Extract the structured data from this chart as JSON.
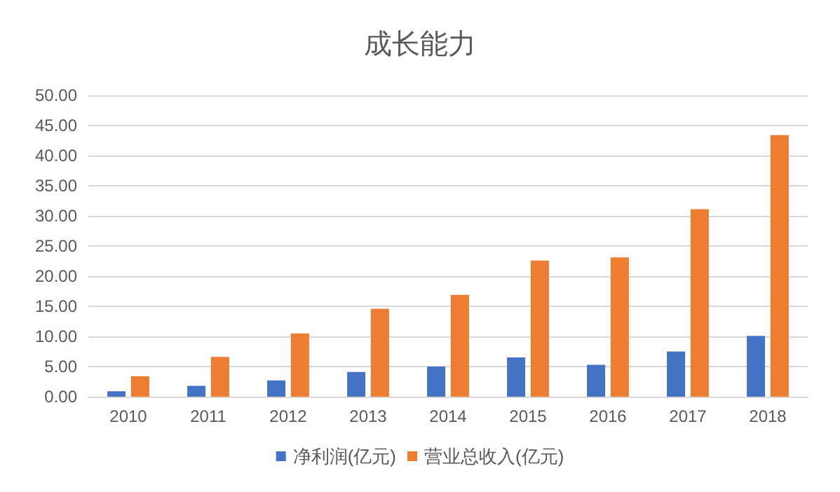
{
  "chart_data": {
    "type": "bar",
    "title": "成长能力",
    "categories": [
      "2010",
      "2011",
      "2012",
      "2013",
      "2014",
      "2015",
      "2016",
      "2017",
      "2018"
    ],
    "series": [
      {
        "name": "净利润(亿元)",
        "color": "#4472c4",
        "values": [
          0.9,
          1.8,
          2.7,
          4.1,
          5.0,
          6.5,
          5.3,
          7.5,
          10.1
        ]
      },
      {
        "name": "营业总收入(亿元)",
        "color": "#ed7d31",
        "values": [
          3.4,
          6.6,
          10.5,
          14.6,
          16.9,
          22.6,
          23.1,
          31.1,
          43.4
        ]
      }
    ],
    "ylim": [
      0,
      50
    ],
    "yticks": [
      {
        "value": 0,
        "label": "0.00"
      },
      {
        "value": 5,
        "label": "5.00"
      },
      {
        "value": 10,
        "label": "10.00"
      },
      {
        "value": 15,
        "label": "15.00"
      },
      {
        "value": 20,
        "label": "20.00"
      },
      {
        "value": 25,
        "label": "25.00"
      },
      {
        "value": 30,
        "label": "30.00"
      },
      {
        "value": 35,
        "label": "35.00"
      },
      {
        "value": 40,
        "label": "40.00"
      },
      {
        "value": 45,
        "label": "45.00"
      },
      {
        "value": 50,
        "label": "50.00"
      }
    ],
    "grid": "y",
    "legend": "bottom"
  }
}
